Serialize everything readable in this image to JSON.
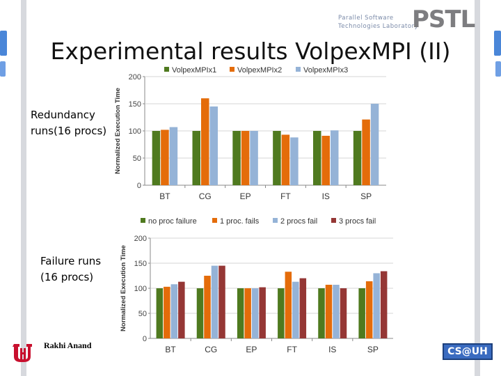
{
  "slide": {
    "title": "Experimental results VolpexMPI (II)",
    "label_redundancy": "Redundancy runs(16 procs)",
    "label_failure": "Failure runs (16 procs)",
    "author": "Rakhi Anand",
    "logo_line1": "Parallel Software",
    "logo_line2": "Technologies Laboratory",
    "logo_mark": "PSTL",
    "footer_logo": "CS@UH"
  },
  "chart_data": [
    {
      "type": "bar",
      "ylabel": "Normalized Execution Time",
      "ylim": [
        0,
        200
      ],
      "yticks": [
        0,
        50,
        100,
        150,
        200
      ],
      "categories": [
        "BT",
        "CG",
        "EP",
        "FT",
        "IS",
        "SP"
      ],
      "legend_position": "top",
      "series": [
        {
          "name": "VolpexMPIx1",
          "color": "#4f7a1f",
          "values": [
            100,
            100,
            100,
            100,
            100,
            100
          ]
        },
        {
          "name": "VolpexMPIx2",
          "color": "#e46c0a",
          "values": [
            102,
            160,
            100,
            93,
            91,
            121
          ]
        },
        {
          "name": "VolpexMPIx3",
          "color": "#95b3d7",
          "values": [
            107,
            145,
            100,
            88,
            101,
            150
          ]
        }
      ]
    },
    {
      "type": "bar",
      "ylabel": "Normalized Execution Time",
      "ylim": [
        0,
        200
      ],
      "yticks": [
        0,
        50,
        100,
        150,
        200
      ],
      "categories": [
        "BT",
        "CG",
        "EP",
        "FT",
        "IS",
        "SP"
      ],
      "legend_position": "top",
      "series": [
        {
          "name": "no proc failure",
          "color": "#4f7a1f",
          "values": [
            100,
            100,
            100,
            100,
            100,
            100
          ]
        },
        {
          "name": "1 proc. fails",
          "color": "#e46c0a",
          "values": [
            103,
            125,
            100,
            133,
            107,
            114
          ]
        },
        {
          "name": "2 procs fail",
          "color": "#95b3d7",
          "values": [
            108,
            145,
            100,
            113,
            107,
            130
          ]
        },
        {
          "name": "3 procs fail",
          "color": "#953735",
          "values": [
            113,
            145,
            102,
            120,
            100,
            134
          ]
        }
      ]
    }
  ]
}
